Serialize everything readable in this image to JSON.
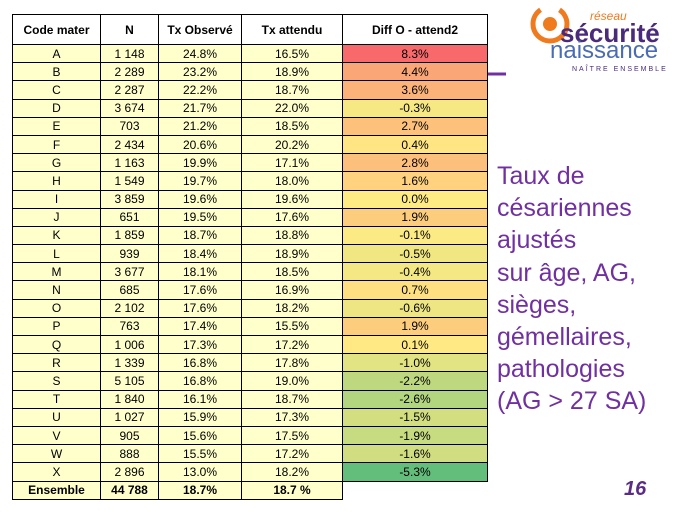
{
  "table": {
    "header": [
      "Code mater",
      "N",
      "Tx Observé",
      "Tx attendu",
      "Diff O - attend2"
    ],
    "rows": [
      [
        "A",
        "1 148",
        "24.8%",
        "16.5%",
        "8.3%"
      ],
      [
        "B",
        "2 289",
        "23.2%",
        "18.9%",
        "4.4%"
      ],
      [
        "C",
        "2 287",
        "22.2%",
        "18.7%",
        "3.6%"
      ],
      [
        "D",
        "3 674",
        "21.7%",
        "22.0%",
        "-0.3%"
      ],
      [
        "E",
        "703",
        "21.2%",
        "18.5%",
        "2.7%"
      ],
      [
        "F",
        "2 434",
        "20.6%",
        "20.2%",
        "0.4%"
      ],
      [
        "G",
        "1 163",
        "19.9%",
        "17.1%",
        "2.8%"
      ],
      [
        "H",
        "1 549",
        "19.7%",
        "18.0%",
        "1.6%"
      ],
      [
        "I",
        "3 859",
        "19.6%",
        "19.6%",
        "0.0%"
      ],
      [
        "J",
        "651",
        "19.5%",
        "17.6%",
        "1.9%"
      ],
      [
        "K",
        "1 859",
        "18.7%",
        "18.8%",
        "-0.1%"
      ],
      [
        "L",
        "939",
        "18.4%",
        "18.9%",
        "-0.5%"
      ],
      [
        "M",
        "3 677",
        "18.1%",
        "18.5%",
        "-0.4%"
      ],
      [
        "N",
        "685",
        "17.6%",
        "16.9%",
        "0.7%"
      ],
      [
        "O",
        "2 102",
        "17.6%",
        "18.2%",
        "-0.6%"
      ],
      [
        "P",
        "763",
        "17.4%",
        "15.5%",
        "1.9%"
      ],
      [
        "Q",
        "1 006",
        "17.3%",
        "17.2%",
        "0.1%"
      ],
      [
        "R",
        "1 339",
        "16.8%",
        "17.8%",
        "-1.0%"
      ],
      [
        "S",
        "5 105",
        "16.8%",
        "19.0%",
        "-2.2%"
      ],
      [
        "T",
        "1 840",
        "16.1%",
        "18.7%",
        "-2.6%"
      ],
      [
        "U",
        "1 027",
        "15.9%",
        "17.3%",
        "-1.5%"
      ],
      [
        "V",
        "905",
        "15.6%",
        "17.5%",
        "-1.9%"
      ],
      [
        "W",
        "888",
        "15.5%",
        "17.2%",
        "-1.6%"
      ],
      [
        "X",
        "2 896",
        "13.0%",
        "18.2%",
        "-5.3%"
      ]
    ],
    "total": [
      "Ensemble",
      "44 788",
      "18.7%",
      "18.7 %"
    ]
  },
  "caption": [
    "Taux de",
    "césariennes",
    "ajustés",
    "sur âge, AG,",
    "sièges,",
    "gémellaires,",
    "pathologies",
    "(AG > 27 SA)"
  ],
  "logo": {
    "small": "réseau",
    "line1": "sécurité",
    "line2": "naissance",
    "tagline": "NAÎTRE ENSEMBLE"
  },
  "page_number": "16"
}
